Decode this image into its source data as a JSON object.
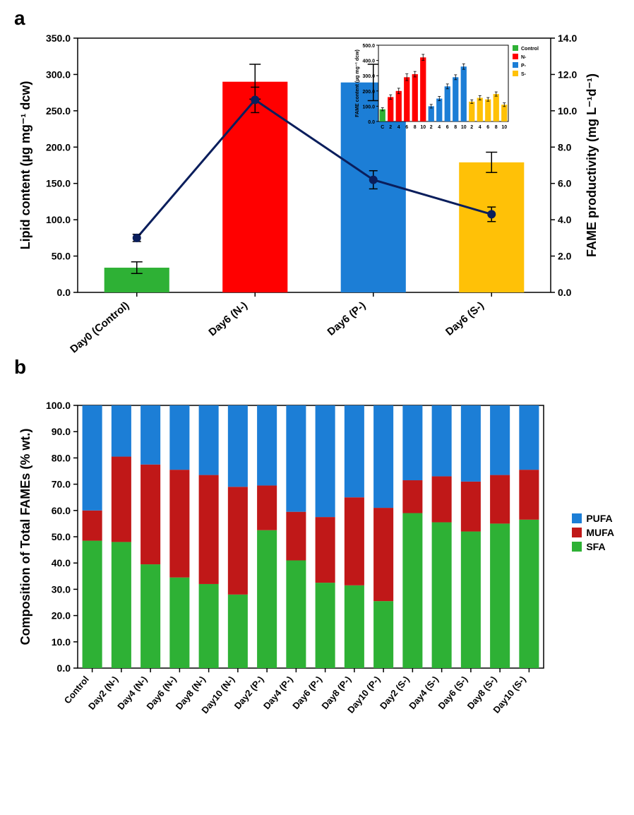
{
  "panelA": {
    "label": "a",
    "left_axis_label": "Lipid content (µg mg⁻¹ dcw)",
    "right_axis_label": "FAME productivity (mg L⁻¹d⁻¹)",
    "left_ylim": [
      0,
      350
    ],
    "left_ticks": [
      0,
      50,
      100,
      150,
      200,
      250,
      300,
      350
    ],
    "right_ylim": [
      0,
      14
    ],
    "right_ticks": [
      0,
      2,
      4,
      6,
      8,
      10,
      12,
      14
    ],
    "categories": [
      "Day0 (Control)",
      "Day6 (N-)",
      "Day6 (P-)",
      "Day6 (S-)"
    ],
    "bars": {
      "values": [
        34,
        290,
        289,
        179
      ],
      "err": [
        8,
        24,
        25,
        14
      ],
      "colors": [
        "#2eb135",
        "#ff0000",
        "#1c7ed6",
        "#ffc107"
      ]
    },
    "line": {
      "values": [
        3.0,
        10.6,
        6.2,
        4.3
      ],
      "err": [
        0.2,
        0.7,
        0.5,
        0.4
      ],
      "color": "#0a1e5c",
      "marker_color": "#0a1e5c",
      "line_width": 3,
      "marker_size": 6
    },
    "plot_bg": "#ffffff",
    "border_color": "#000000",
    "inset": {
      "ylabel": "FAME content (µg mg⁻¹ dcw)",
      "ylim": [
        0,
        500
      ],
      "yticks": [
        0,
        100,
        200,
        300,
        400,
        500
      ],
      "x_labels": [
        "C",
        "2",
        "4",
        "6",
        "8",
        "10",
        "2",
        "4",
        "6",
        "8",
        "10",
        "2",
        "4",
        "6",
        "8",
        "10"
      ],
      "values": [
        80,
        160,
        200,
        290,
        310,
        420,
        100,
        150,
        230,
        290,
        360,
        130,
        155,
        145,
        180,
        110
      ],
      "err": [
        10,
        15,
        18,
        22,
        18,
        20,
        12,
        14,
        16,
        16,
        18,
        12,
        14,
        12,
        14,
        12
      ],
      "colors": [
        "#2eb135",
        "#ff0000",
        "#ff0000",
        "#ff0000",
        "#ff0000",
        "#ff0000",
        "#1c7ed6",
        "#1c7ed6",
        "#1c7ed6",
        "#1c7ed6",
        "#1c7ed6",
        "#ffc107",
        "#ffc107",
        "#ffc107",
        "#ffc107",
        "#ffc107"
      ],
      "legend": [
        {
          "label": "Control",
          "color": "#2eb135"
        },
        {
          "label": "N-",
          "color": "#ff0000"
        },
        {
          "label": "P-",
          "color": "#1c7ed6"
        },
        {
          "label": "S-",
          "color": "#ffc107"
        }
      ]
    }
  },
  "panelB": {
    "label": "b",
    "y_axis_label": "Composition of Total FAMEs (% wt.)",
    "ylim": [
      0,
      100
    ],
    "yticks": [
      0,
      10,
      20,
      30,
      40,
      50,
      60,
      70,
      80,
      90,
      100
    ],
    "categories": [
      "Control",
      "Day2 (N-)",
      "Day4 (N-)",
      "Day6 (N-)",
      "Day8 (N-)",
      "Day10 (N-)",
      "Day2 (P-)",
      "Day4 (P-)",
      "Day6 (P-)",
      "Day8 (P-)",
      "Day10 (P-)",
      "Day2 (S-)",
      "Day4 (S-)",
      "Day6 (S-)",
      "Day8 (S-)",
      "Day10 (S-)"
    ],
    "series": {
      "SFA": [
        48.5,
        48.0,
        39.5,
        34.5,
        32.0,
        28.0,
        52.5,
        41.0,
        32.5,
        31.5,
        25.5,
        59.0,
        55.5,
        52.0,
        55.0,
        56.5
      ],
      "MUFA": [
        11.5,
        32.5,
        38.0,
        41.0,
        41.5,
        41.0,
        17.0,
        18.5,
        25.0,
        33.5,
        35.5,
        12.5,
        17.5,
        19.0,
        18.5,
        19.0
      ],
      "PUFA": [
        40.0,
        19.5,
        22.5,
        24.5,
        26.5,
        31.0,
        30.5,
        40.5,
        42.5,
        35.0,
        39.0,
        28.5,
        27.0,
        29.0,
        26.5,
        24.5
      ]
    },
    "colors": {
      "SFA": "#2eb135",
      "MUFA": "#c01818",
      "PUFA": "#1c7ed6"
    },
    "legend_order": [
      "PUFA",
      "MUFA",
      "SFA"
    ],
    "bar_width": 0.68,
    "plot_bg": "#ffffff",
    "border_color": "#000000"
  },
  "fonts": {
    "axis_label_pt": 18,
    "tick_pt": 14,
    "panel_label_pt": 28
  }
}
